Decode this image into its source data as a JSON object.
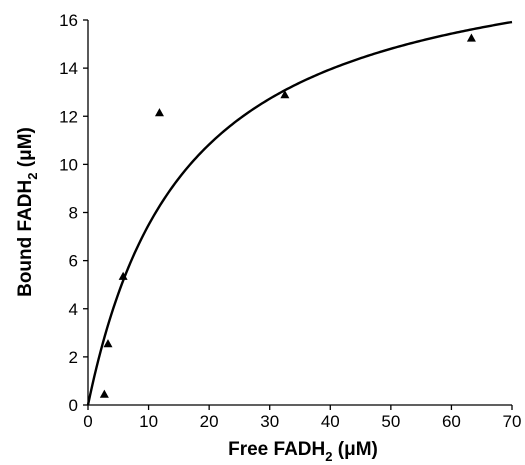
{
  "chart_data": {
    "type": "scatter",
    "title": "",
    "xlabel": {
      "prefix": "Free FADH",
      "subscript": "2",
      "suffix": " (μM)"
    },
    "ylabel": {
      "prefix": "Bound FADH",
      "subscript": "2",
      "suffix": " (μM)"
    },
    "xlim": [
      0,
      70
    ],
    "ylim": [
      0,
      16
    ],
    "x_ticks": [
      0,
      10,
      20,
      30,
      40,
      50,
      60,
      70
    ],
    "y_ticks": [
      0,
      2,
      4,
      6,
      8,
      10,
      12,
      14,
      16
    ],
    "grid": false,
    "legend": "none",
    "series": [
      {
        "marker": "triangle",
        "color": "#000000",
        "points": [
          {
            "x": 2.7,
            "y": 0.45
          },
          {
            "x": 3.3,
            "y": 2.55
          },
          {
            "x": 5.8,
            "y": 5.35
          },
          {
            "x": 11.8,
            "y": 12.15
          },
          {
            "x": 32.5,
            "y": 12.9
          },
          {
            "x": 63.3,
            "y": 15.25
          }
        ]
      }
    ],
    "fit_curve": {
      "type": "hyperbolic",
      "Bmax": 19.6,
      "Kd": 16.2,
      "color": "#000000"
    }
  }
}
